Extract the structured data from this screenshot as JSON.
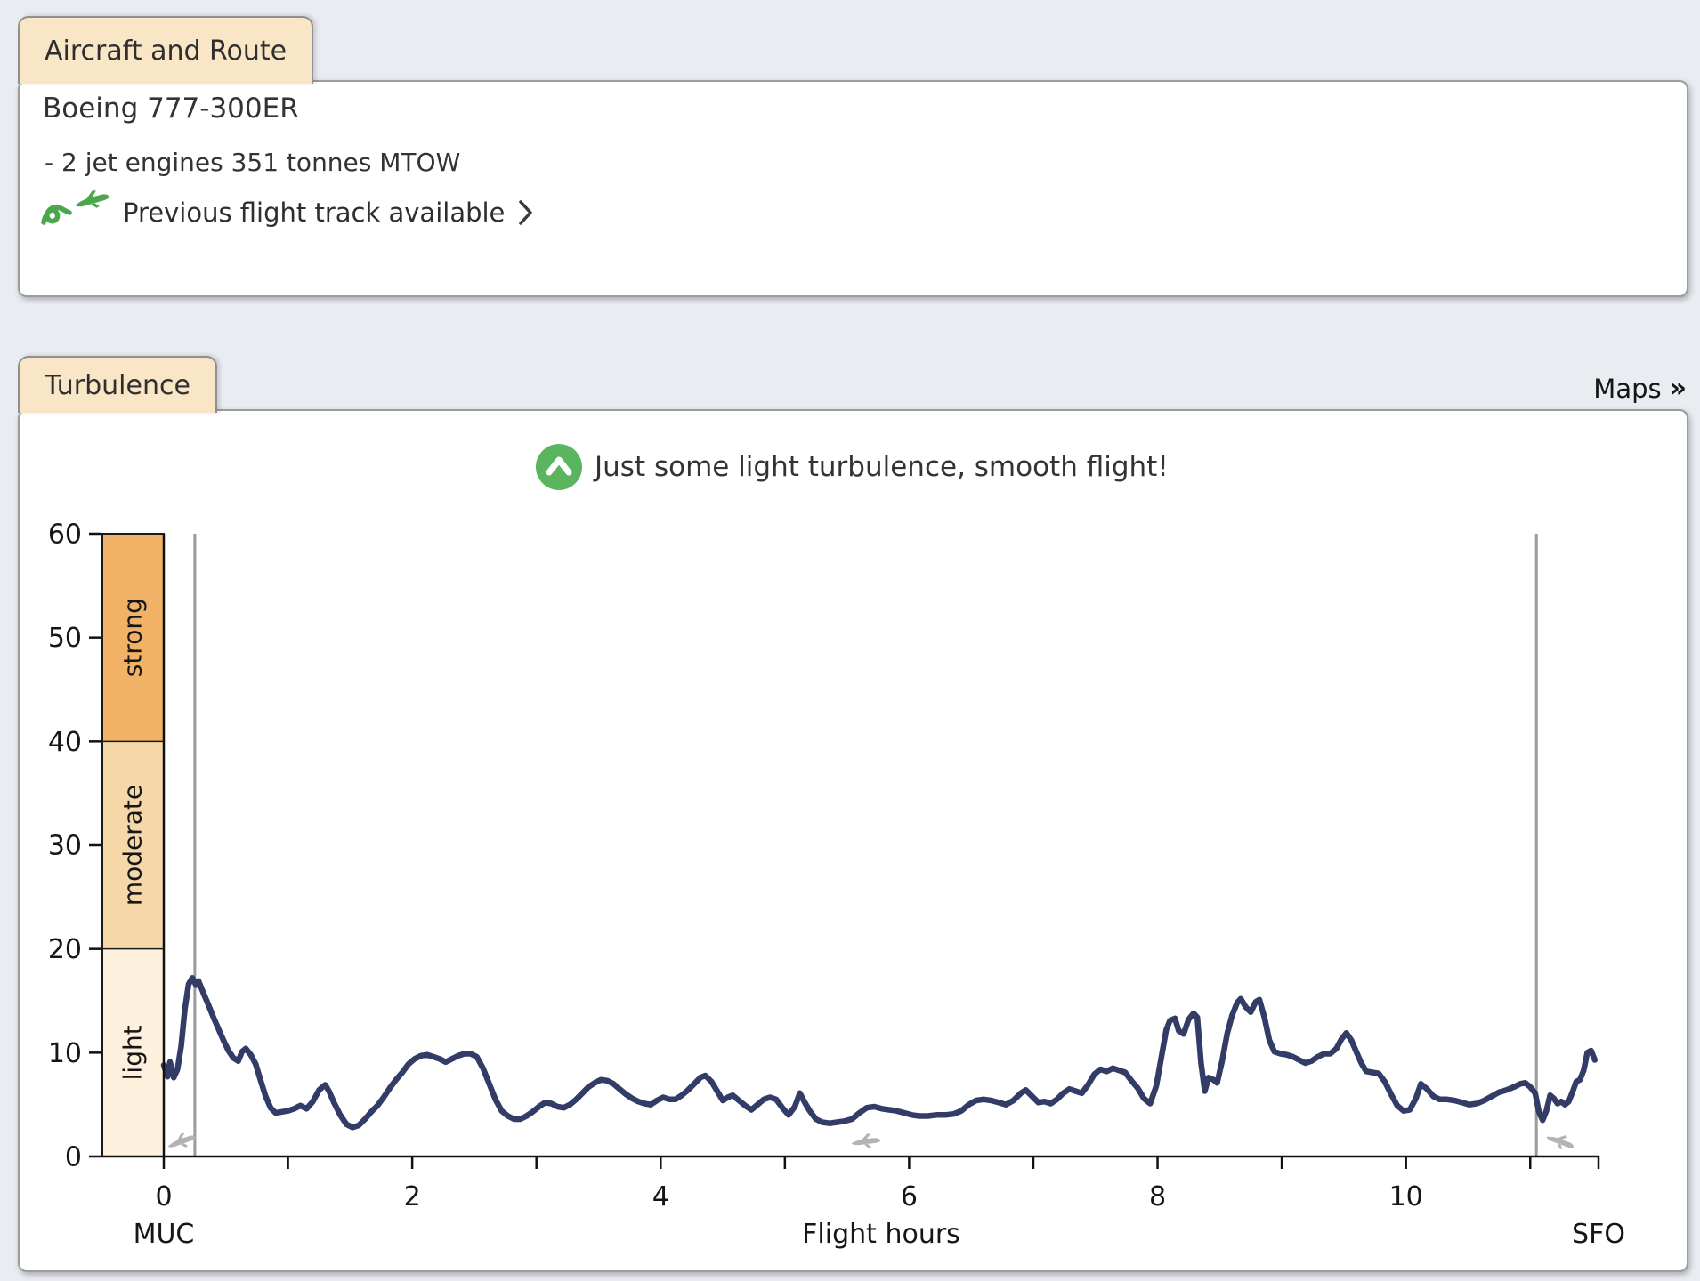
{
  "aircraft_panel": {
    "tab_label": "Aircraft and Route",
    "aircraft_name": "Boeing 777-300ER",
    "engine_info": "- 2 jet engines",
    "mtow_info": "351 tonnes MTOW",
    "track_link_label": "Previous flight track available"
  },
  "turbulence_panel": {
    "tab_label": "Turbulence",
    "maps_label": "Maps",
    "maps_chevron": "»",
    "status_message": "Just some light turbulence, smooth flight!"
  },
  "colors": {
    "page_background": "#e9edf2",
    "tab_background": "#f9e6c6",
    "panel_background": "#ffffff",
    "status_icon_green": "#5bb55e",
    "track_icon_green": "#4ca64c",
    "band_strong": "#f1b166",
    "band_moderate": "#f6d7a8",
    "band_light": "#fdf0dd",
    "series_line": "#323c66",
    "marker_line": "#9b9b9b",
    "plane_icon_gray": "#b3b3b3"
  },
  "chart_data": {
    "type": "line",
    "title": "",
    "xlabel": "Flight hours",
    "ylabel": "",
    "origin_airport": "MUC",
    "destination_airport": "SFO",
    "xlim": [
      0,
      11.55
    ],
    "ylim": [
      0,
      60
    ],
    "grid": false,
    "y_ticks": [
      0,
      10,
      20,
      30,
      40,
      50,
      60
    ],
    "x_tick_labels": [
      0,
      2,
      4,
      6,
      8,
      10
    ],
    "x_minor_tick_hours": [
      0,
      1,
      2,
      3,
      4,
      5,
      6,
      7,
      8,
      9,
      10,
      11
    ],
    "bands": [
      {
        "label": "light",
        "from": 0,
        "to": 20,
        "color": "#fdf0dd"
      },
      {
        "label": "moderate",
        "from": 20,
        "to": 40,
        "color": "#f6d7a8"
      },
      {
        "label": "strong",
        "from": 40,
        "to": 60,
        "color": "#f1b166"
      }
    ],
    "takeoff_marker_hour": 0.25,
    "landing_marker_hour": 11.05,
    "plane_icons": [
      {
        "hour": 0.14,
        "phase": "takeoff"
      },
      {
        "hour": 5.65,
        "phase": "cruise"
      },
      {
        "hour": 11.24,
        "phase": "landing"
      }
    ],
    "line_color": "#323c66",
    "marker_line_color": "#9b9b9b",
    "series": [
      {
        "name": "turbulence",
        "points": [
          [
            0,
            8.8
          ],
          [
            0.03,
            7.7
          ],
          [
            0.05,
            9.1
          ],
          [
            0.08,
            7.6
          ],
          [
            0.11,
            8.4
          ],
          [
            0.14,
            10.6
          ],
          [
            0.17,
            14.2
          ],
          [
            0.2,
            16.6
          ],
          [
            0.23,
            17.2
          ],
          [
            0.26,
            16.5
          ],
          [
            0.28,
            16.9
          ],
          [
            0.32,
            15.7
          ],
          [
            0.36,
            14.6
          ],
          [
            0.4,
            13.4
          ],
          [
            0.44,
            12.3
          ],
          [
            0.48,
            11.2
          ],
          [
            0.52,
            10.2
          ],
          [
            0.56,
            9.5
          ],
          [
            0.6,
            9.2
          ],
          [
            0.63,
            10.1
          ],
          [
            0.66,
            10.4
          ],
          [
            0.7,
            9.8
          ],
          [
            0.74,
            8.9
          ],
          [
            0.78,
            7.3
          ],
          [
            0.82,
            5.8
          ],
          [
            0.86,
            4.7
          ],
          [
            0.9,
            4.2
          ],
          [
            0.95,
            4.3
          ],
          [
            1,
            4.4
          ],
          [
            1.05,
            4.6
          ],
          [
            1.1,
            4.9
          ],
          [
            1.15,
            4.6
          ],
          [
            1.2,
            5.3
          ],
          [
            1.25,
            6.4
          ],
          [
            1.3,
            6.9
          ],
          [
            1.33,
            6.3
          ],
          [
            1.37,
            5.2
          ],
          [
            1.42,
            4
          ],
          [
            1.47,
            3.1
          ],
          [
            1.52,
            2.8
          ],
          [
            1.57,
            3
          ],
          [
            1.62,
            3.6
          ],
          [
            1.67,
            4.3
          ],
          [
            1.72,
            4.9
          ],
          [
            1.77,
            5.7
          ],
          [
            1.82,
            6.6
          ],
          [
            1.87,
            7.4
          ],
          [
            1.92,
            8.1
          ],
          [
            1.97,
            8.9
          ],
          [
            2.02,
            9.4
          ],
          [
            2.07,
            9.7
          ],
          [
            2.12,
            9.8
          ],
          [
            2.17,
            9.6
          ],
          [
            2.22,
            9.4
          ],
          [
            2.27,
            9.1
          ],
          [
            2.32,
            9.4
          ],
          [
            2.37,
            9.7
          ],
          [
            2.42,
            9.9
          ],
          [
            2.47,
            9.9
          ],
          [
            2.52,
            9.6
          ],
          [
            2.57,
            8.5
          ],
          [
            2.62,
            7
          ],
          [
            2.67,
            5.5
          ],
          [
            2.72,
            4.4
          ],
          [
            2.77,
            3.9
          ],
          [
            2.82,
            3.6
          ],
          [
            2.87,
            3.6
          ],
          [
            2.92,
            3.9
          ],
          [
            2.97,
            4.3
          ],
          [
            3.02,
            4.8
          ],
          [
            3.07,
            5.2
          ],
          [
            3.12,
            5.1
          ],
          [
            3.17,
            4.8
          ],
          [
            3.22,
            4.7
          ],
          [
            3.27,
            5
          ],
          [
            3.32,
            5.5
          ],
          [
            3.37,
            6.1
          ],
          [
            3.42,
            6.7
          ],
          [
            3.47,
            7.1
          ],
          [
            3.52,
            7.4
          ],
          [
            3.57,
            7.3
          ],
          [
            3.62,
            7
          ],
          [
            3.67,
            6.5
          ],
          [
            3.72,
            6
          ],
          [
            3.77,
            5.6
          ],
          [
            3.82,
            5.3
          ],
          [
            3.87,
            5.1
          ],
          [
            3.92,
            5
          ],
          [
            3.97,
            5.4
          ],
          [
            4.02,
            5.7
          ],
          [
            4.07,
            5.5
          ],
          [
            4.12,
            5.5
          ],
          [
            4.17,
            5.9
          ],
          [
            4.22,
            6.4
          ],
          [
            4.27,
            7
          ],
          [
            4.32,
            7.6
          ],
          [
            4.36,
            7.8
          ],
          [
            4.41,
            7.2
          ],
          [
            4.46,
            6.2
          ],
          [
            4.5,
            5.4
          ],
          [
            4.54,
            5.7
          ],
          [
            4.58,
            5.9
          ],
          [
            4.63,
            5.4
          ],
          [
            4.68,
            4.9
          ],
          [
            4.73,
            4.5
          ],
          [
            4.78,
            5
          ],
          [
            4.83,
            5.5
          ],
          [
            4.88,
            5.7
          ],
          [
            4.93,
            5.5
          ],
          [
            4.98,
            4.7
          ],
          [
            5.03,
            4
          ],
          [
            5.08,
            4.8
          ],
          [
            5.12,
            6.1
          ],
          [
            5.16,
            5.2
          ],
          [
            5.2,
            4.4
          ],
          [
            5.25,
            3.6
          ],
          [
            5.3,
            3.3
          ],
          [
            5.36,
            3.2
          ],
          [
            5.42,
            3.3
          ],
          [
            5.48,
            3.4
          ],
          [
            5.54,
            3.6
          ],
          [
            5.6,
            4.2
          ],
          [
            5.66,
            4.7
          ],
          [
            5.72,
            4.8
          ],
          [
            5.78,
            4.6
          ],
          [
            5.84,
            4.5
          ],
          [
            5.9,
            4.4
          ],
          [
            5.96,
            4.2
          ],
          [
            6.02,
            4
          ],
          [
            6.08,
            3.9
          ],
          [
            6.15,
            3.9
          ],
          [
            6.22,
            4
          ],
          [
            6.29,
            4
          ],
          [
            6.36,
            4.1
          ],
          [
            6.42,
            4.4
          ],
          [
            6.48,
            5
          ],
          [
            6.54,
            5.4
          ],
          [
            6.6,
            5.5
          ],
          [
            6.66,
            5.4
          ],
          [
            6.72,
            5.2
          ],
          [
            6.78,
            5
          ],
          [
            6.84,
            5.4
          ],
          [
            6.9,
            6.1
          ],
          [
            6.94,
            6.4
          ],
          [
            6.99,
            5.8
          ],
          [
            7.04,
            5.2
          ],
          [
            7.09,
            5.3
          ],
          [
            7.14,
            5.1
          ],
          [
            7.19,
            5.5
          ],
          [
            7.24,
            6.1
          ],
          [
            7.29,
            6.5
          ],
          [
            7.34,
            6.3
          ],
          [
            7.39,
            6.1
          ],
          [
            7.44,
            6.9
          ],
          [
            7.49,
            7.9
          ],
          [
            7.54,
            8.4
          ],
          [
            7.59,
            8.2
          ],
          [
            7.64,
            8.5
          ],
          [
            7.69,
            8.3
          ],
          [
            7.74,
            8.1
          ],
          [
            7.79,
            7.3
          ],
          [
            7.84,
            6.6
          ],
          [
            7.89,
            5.6
          ],
          [
            7.94,
            5.1
          ],
          [
            7.99,
            6.8
          ],
          [
            8.03,
            9.5
          ],
          [
            8.07,
            12.2
          ],
          [
            8.1,
            13.1
          ],
          [
            8.14,
            13.3
          ],
          [
            8.17,
            12.1
          ],
          [
            8.21,
            11.8
          ],
          [
            8.25,
            13.2
          ],
          [
            8.29,
            13.8
          ],
          [
            8.32,
            13.4
          ],
          [
            8.35,
            9
          ],
          [
            8.38,
            6.3
          ],
          [
            8.41,
            7.6
          ],
          [
            8.45,
            7.4
          ],
          [
            8.48,
            7.1
          ],
          [
            8.52,
            9.2
          ],
          [
            8.56,
            11.8
          ],
          [
            8.6,
            13.6
          ],
          [
            8.64,
            14.8
          ],
          [
            8.67,
            15.2
          ],
          [
            8.71,
            14.4
          ],
          [
            8.75,
            13.9
          ],
          [
            8.79,
            14.9
          ],
          [
            8.82,
            15.1
          ],
          [
            8.86,
            13.4
          ],
          [
            8.9,
            11.2
          ],
          [
            8.94,
            10.1
          ],
          [
            8.99,
            9.9
          ],
          [
            9.04,
            9.8
          ],
          [
            9.09,
            9.6
          ],
          [
            9.14,
            9.3
          ],
          [
            9.19,
            9
          ],
          [
            9.24,
            9.2
          ],
          [
            9.29,
            9.6
          ],
          [
            9.34,
            9.9
          ],
          [
            9.39,
            9.9
          ],
          [
            9.44,
            10.4
          ],
          [
            9.48,
            11.3
          ],
          [
            9.52,
            11.9
          ],
          [
            9.56,
            11.2
          ],
          [
            9.6,
            10.1
          ],
          [
            9.64,
            9
          ],
          [
            9.68,
            8.2
          ],
          [
            9.73,
            8.1
          ],
          [
            9.78,
            8
          ],
          [
            9.83,
            7.2
          ],
          [
            9.88,
            6
          ],
          [
            9.93,
            4.9
          ],
          [
            9.98,
            4.4
          ],
          [
            10.03,
            4.5
          ],
          [
            10.08,
            5.6
          ],
          [
            10.12,
            7
          ],
          [
            10.17,
            6.5
          ],
          [
            10.22,
            5.8
          ],
          [
            10.27,
            5.5
          ],
          [
            10.33,
            5.5
          ],
          [
            10.39,
            5.4
          ],
          [
            10.45,
            5.2
          ],
          [
            10.51,
            5
          ],
          [
            10.57,
            5.1
          ],
          [
            10.63,
            5.4
          ],
          [
            10.69,
            5.8
          ],
          [
            10.75,
            6.2
          ],
          [
            10.81,
            6.4
          ],
          [
            10.87,
            6.7
          ],
          [
            10.92,
            7
          ],
          [
            10.96,
            7.1
          ],
          [
            11,
            6.7
          ],
          [
            11.04,
            6.1
          ],
          [
            11.07,
            4.3
          ],
          [
            11.1,
            3.5
          ],
          [
            11.13,
            4.4
          ],
          [
            11.16,
            5.9
          ],
          [
            11.19,
            5.6
          ],
          [
            11.22,
            5.1
          ],
          [
            11.25,
            5.3
          ],
          [
            11.28,
            5
          ],
          [
            11.31,
            5.3
          ],
          [
            11.34,
            6.2
          ],
          [
            11.37,
            7.2
          ],
          [
            11.4,
            7.4
          ],
          [
            11.43,
            8.3
          ],
          [
            11.46,
            10
          ],
          [
            11.49,
            10.2
          ],
          [
            11.52,
            9.3
          ]
        ]
      }
    ]
  }
}
